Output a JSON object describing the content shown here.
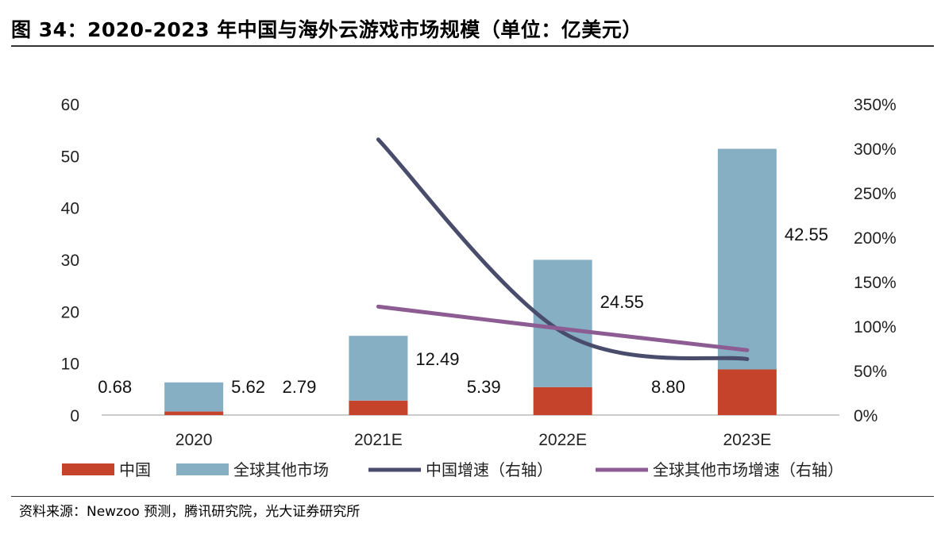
{
  "title": "图 34：2020-2023 年中国与海外云游戏市场规模（单位：亿美元）",
  "source": "资料来源：Newzoo 预测，腾讯研究院，光大证券研究所",
  "chart_data": {
    "type": "bar",
    "stacked": true,
    "categories": [
      "2020",
      "2021E",
      "2022E",
      "2023E"
    ],
    "series": [
      {
        "name": "中国",
        "type": "bar",
        "axis": "left",
        "color": "#C5432A",
        "values": [
          0.68,
          2.79,
          5.39,
          8.8
        ]
      },
      {
        "name": "全球其他市场",
        "type": "bar",
        "axis": "left",
        "color": "#86AFC4",
        "values": [
          5.62,
          12.49,
          24.55,
          42.55
        ]
      },
      {
        "name": "中国增速（右轴）",
        "type": "line",
        "axis": "right",
        "color": "#4A4C6C",
        "values": [
          null,
          310,
          93,
          63
        ]
      },
      {
        "name": "全球其他市场增速（右轴）",
        "type": "line",
        "axis": "right",
        "color": "#8C5C92",
        "values": [
          null,
          122,
          97,
          73
        ]
      }
    ],
    "ylim": [
      0,
      60
    ],
    "yticks": [
      "0",
      "10",
      "20",
      "30",
      "40",
      "50",
      "60"
    ],
    "y2lim": [
      0,
      350
    ],
    "y2ticks": [
      "0%",
      "50%",
      "100%",
      "150%",
      "200%",
      "250%",
      "300%",
      "350%"
    ],
    "grid": false,
    "legend": "bottom"
  }
}
